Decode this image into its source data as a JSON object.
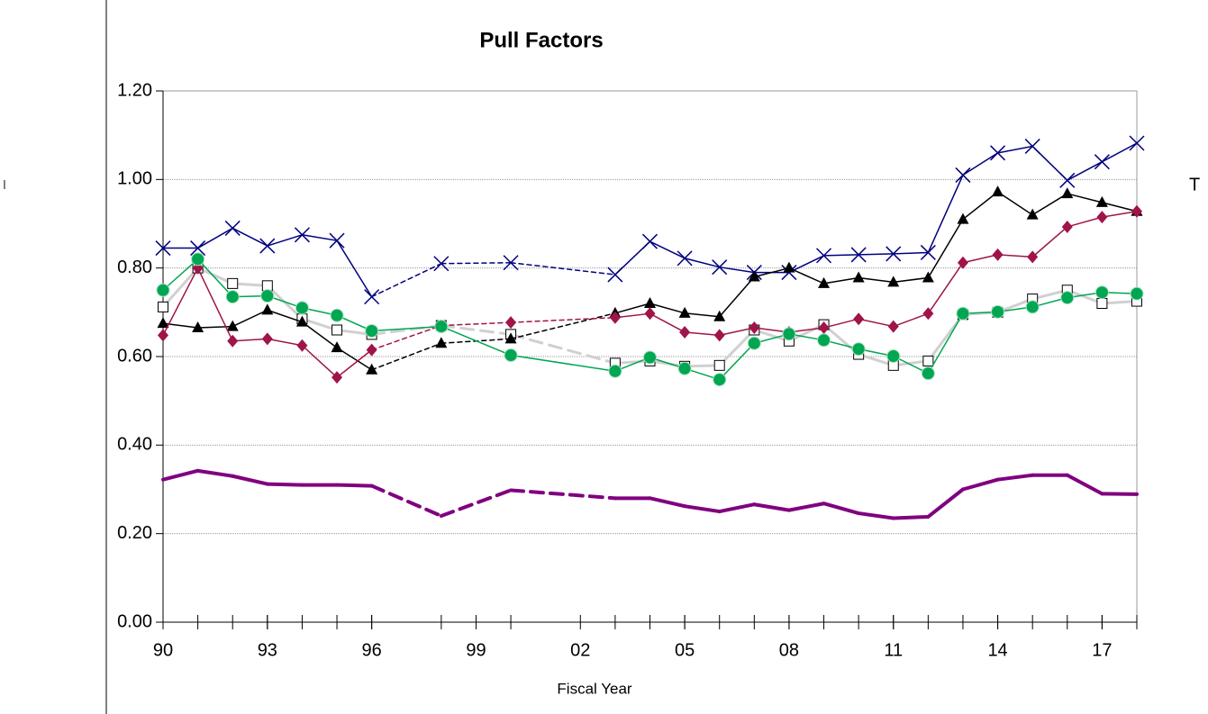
{
  "chart_data": {
    "type": "line",
    "title": "Pull Factors",
    "x_label": "Fiscal Year",
    "annotation": "T",
    "x": [
      1990,
      1991,
      1992,
      1993,
      1994,
      1995,
      1996,
      1998,
      2000,
      2003,
      2004,
      2005,
      2006,
      2007,
      2008,
      2009,
      2010,
      2011,
      2012,
      2013,
      2014,
      2015,
      2016,
      2017,
      2018
    ],
    "xlim": [
      1990,
      2018
    ],
    "xticks": [
      {
        "value": 1990,
        "label": "90"
      },
      {
        "value": 1993,
        "label": "93"
      },
      {
        "value": 1996,
        "label": "96"
      },
      {
        "value": 1999,
        "label": "99"
      },
      {
        "value": 2002,
        "label": "02"
      },
      {
        "value": 2005,
        "label": "05"
      },
      {
        "value": 2008,
        "label": "08"
      },
      {
        "value": 2011,
        "label": "11"
      },
      {
        "value": 2014,
        "label": "14"
      },
      {
        "value": 2017,
        "label": "17"
      }
    ],
    "ylim": [
      0,
      1.2
    ],
    "yticks": [
      {
        "value": 0,
        "label": "0.00"
      },
      {
        "value": 0.2,
        "label": "0.20"
      },
      {
        "value": 0.4,
        "label": "0.40"
      },
      {
        "value": 0.6,
        "label": "0.60"
      },
      {
        "value": 0.8,
        "label": "0.80"
      },
      {
        "value": 1,
        "label": "1.00"
      },
      {
        "value": 1.2,
        "label": "1.20"
      }
    ],
    "grid": true,
    "series": [
      {
        "color": "#d0d0d0",
        "marker": "square",
        "line_width": 3,
        "dashed_gaps": true,
        "values": [
          0.712,
          0.8,
          0.765,
          0.76,
          0.685,
          0.66,
          0.65,
          0.67,
          0.65,
          0.585,
          0.59,
          0.578,
          0.58,
          0.66,
          0.635,
          0.672,
          0.605,
          0.58,
          0.59,
          0.695,
          0.7,
          0.73,
          0.75,
          0.72,
          0.725
        ]
      },
      {
        "color": "#000080",
        "marker": "x",
        "line_width": 1.5,
        "dashed_gaps": true,
        "values": [
          0.845,
          0.845,
          0.89,
          0.85,
          0.875,
          0.862,
          0.735,
          0.81,
          0.812,
          0.785,
          0.86,
          0.822,
          0.802,
          0.79,
          0.79,
          0.828,
          0.83,
          0.832,
          0.835,
          1.01,
          1.06,
          1.075,
          0.998,
          1.04,
          1.082
        ]
      },
      {
        "color": "#000000",
        "marker": "triangle",
        "line_width": 1.5,
        "dashed_gaps": true,
        "values": [
          0.675,
          0.665,
          0.668,
          0.705,
          0.678,
          0.62,
          0.57,
          0.63,
          0.64,
          0.698,
          0.72,
          0.698,
          0.69,
          0.78,
          0.8,
          0.765,
          0.778,
          0.768,
          0.778,
          0.91,
          0.972,
          0.92,
          0.968,
          0.948,
          0.928
        ]
      },
      {
        "color": "#a0144a",
        "marker": "diamond",
        "line_width": 1.5,
        "dashed_gaps": true,
        "values": [
          0.648,
          0.8,
          0.635,
          0.64,
          0.625,
          0.553,
          0.615,
          0.67,
          0.677,
          0.688,
          0.697,
          0.655,
          0.648,
          0.665,
          0.655,
          0.665,
          0.685,
          0.668,
          0.697,
          0.812,
          0.83,
          0.825,
          0.893,
          0.915,
          0.928
        ]
      },
      {
        "color": "#00a651",
        "marker": "circle",
        "line_width": 1.5,
        "dashed_gaps": false,
        "values": [
          0.75,
          0.82,
          0.735,
          0.737,
          0.71,
          0.693,
          0.658,
          0.668,
          0.603,
          0.567,
          0.598,
          0.573,
          0.548,
          0.63,
          0.651,
          0.637,
          0.617,
          0.601,
          0.562,
          0.697,
          0.701,
          0.712,
          0.733,
          0.745,
          0.742
        ]
      },
      {
        "color": "#800080",
        "marker": "none",
        "line_width": 4,
        "dashed_gaps": true,
        "values": [
          0.322,
          0.342,
          0.33,
          0.312,
          0.31,
          0.31,
          0.308,
          0.24,
          0.298,
          0.28,
          0.28,
          0.262,
          0.25,
          0.266,
          0.253,
          0.268,
          0.246,
          0.235,
          0.238,
          0.3,
          0.322,
          0.332,
          0.332,
          0.29,
          0.289
        ]
      }
    ]
  }
}
